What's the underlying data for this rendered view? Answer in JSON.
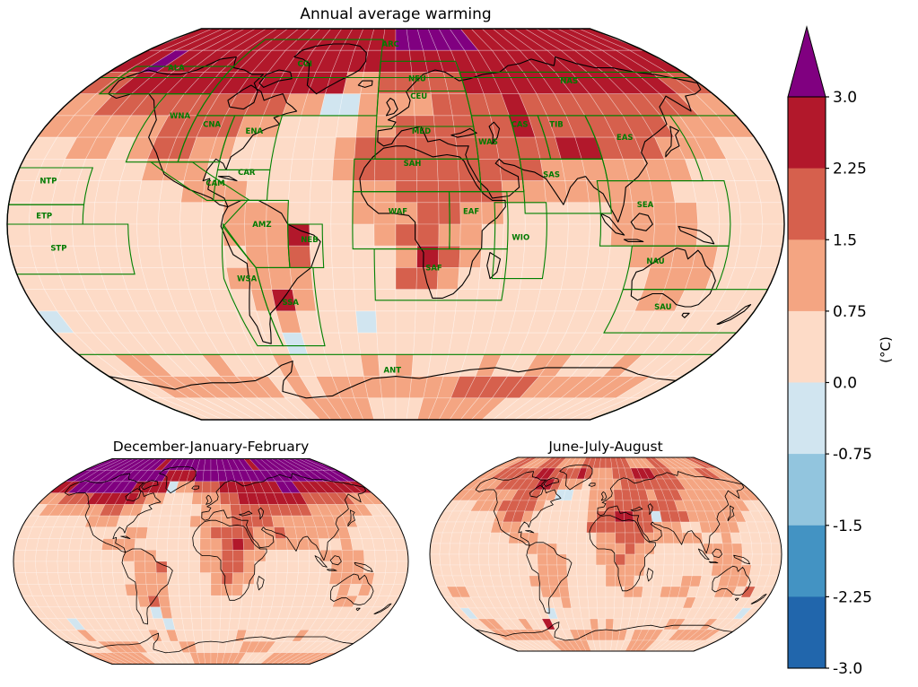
{
  "figure": {
    "annual_title": "Annual average warming",
    "djf_title": "December-January-February",
    "jja_title": "June-July-August"
  },
  "colorbar": {
    "unit_label": "(°C)",
    "tick_labels_top_to_bottom": [
      "3.0",
      "2.25",
      "1.5",
      "0.75",
      "0.0",
      "-0.75",
      "-1.5",
      "-2.25",
      "-3.0"
    ],
    "segment_colors_top_to_bottom": [
      "#b2182b",
      "#d6604d",
      "#f4a582",
      "#fddbc7",
      "#d1e5f0",
      "#92c5de",
      "#4393c3",
      "#2166ac"
    ],
    "over_arrow_color": "#800080",
    "outline_color": "#000000"
  },
  "chart_data": {
    "type": "heatmap",
    "projection": "robinson-like",
    "grid_resolution_deg": 10,
    "value_unit": "°C",
    "value_classes": {
      "9": {
        "range": "> 3.0",
        "color": "#800080"
      },
      "8": {
        "range": "2.25 to 3.0",
        "color": "#b2182b"
      },
      "7": {
        "range": "1.5 to 2.25",
        "color": "#d6604d"
      },
      "6": {
        "range": "0.75 to 1.5",
        "color": "#f4a582"
      },
      "5": {
        "range": "0.0 to 0.75",
        "color": "#fddbc7"
      },
      "4": {
        "range": "-0.75 to 0.0",
        "color": "#d1e5f0"
      },
      "3": {
        "range": "-1.5 to -0.75",
        "color": "#92c5de"
      },
      "2": {
        "range": "-2.25 to -1.5",
        "color": "#4393c3"
      },
      "1": {
        "range": "-3.0 to -2.25",
        "color": "#2166ac"
      }
    },
    "region_outline_color": "#008000",
    "region_label_color": "#007a00",
    "maps": [
      {
        "id": "annual",
        "title": "Annual average warming",
        "rows": [
          "888888888888888888999999888888888888",
          "889888888888888888888888888888888888",
          "778888888888888667777788888888888877",
          "667777777777664466667777877777777766",
          "666666777766555566777777877777776666",
          "556656776655555677777777778877766655",
          "555555666555555677777777766666665555",
          "555555556665555566777776666666655555",
          "555555555566655566677665555566665555",
          "555555555566685556776655555566665555",
          "555555555556675555687655555556666555",
          "555555555566665555776555555555666555",
          "555555555556865555555555555555665555",
          "455555555555655545555555555555555555",
          "555555555555455555555555555555555555",
          "556655565556555565655556556655565555",
          "556666666656566666666677777666666655",
          "555555555556666655556666665555555555"
        ]
      },
      {
        "id": "djf",
        "title": "December-January-February",
        "rows": [
          "999999999989999999999999899999999999",
          "999999999999888899999999999999999999",
          "889999999888846677788888889988888888",
          "667778888876655566677888888877777666",
          "566666677665555556667777777766666655",
          "555555666555555566667777666666665555",
          "555555555566555556777766766666655555",
          "555555556665555556678766666655655555",
          "555555555566655556677665555566665555",
          "555555555556675556677655555556665555",
          "555555555556665555676655555556666555",
          "555555555566665555666555555555656555",
          "555555555556765555555555555555665555",
          "555555555555465555555555555555555555",
          "555455555555545555555555555555555555",
          "555655555556565555555655555565555555",
          "555566666555556655555566665555555555",
          "666666665555555666666665555666666666"
        ]
      },
      {
        "id": "jja",
        "title": "June-July-August",
        "rows": [
          "667766677766667777777766667766666677",
          "667777778877778766677788877766667766",
          "666677777887666566667777777766666666",
          "666666677766445566677776777666666666",
          "555666777765555566777777776666666655",
          "555555677655555567788774777666666555",
          "555555666555555577777776665566665555",
          "555555556665555556677766666655655555",
          "555555555566655556667665555566665555",
          "555555555556665556676655555556665555",
          "555555555556665555666655555556666555",
          "555555555566665555666555556655666555",
          "566555555556665555556655666555665755",
          "555555555555565555555555555655555555",
          "545555555554555555555555555555555545",
          "556655565585555565655555556655565555",
          "556666666655566666666566665566666655",
          "555555555666666555555566665555555555"
        ]
      }
    ],
    "regions": [
      {
        "code": "ARC",
        "lon": [
          -180,
          180
        ],
        "lat": [
          67.5,
          90
        ],
        "label": [
          -4,
          83
        ]
      },
      {
        "code": "ALA",
        "lon": [
          -168,
          -105
        ],
        "lat": [
          60,
          72.6
        ],
        "label": [
          -141,
          72
        ]
      },
      {
        "code": "CGI",
        "lon": [
          -105,
          -10
        ],
        "lat": [
          50,
          85
        ],
        "label": [
          -60,
          74
        ]
      },
      {
        "code": "WNA",
        "lon": [
          -130,
          -105
        ],
        "lat": [
          28.6,
          60
        ],
        "label": [
          -114,
          50
        ]
      },
      {
        "code": "CNA",
        "lon": [
          -105,
          -85
        ],
        "lat": [
          28.6,
          50
        ],
        "label": [
          -95,
          46
        ]
      },
      {
        "code": "ENA",
        "lon": [
          -85,
          -60
        ],
        "lat": [
          25,
          50
        ],
        "label": [
          -72,
          43
        ]
      },
      {
        "code": "NTP",
        "lon": [
          -180,
          -145
        ],
        "lat": [
          9,
          26
        ],
        "label": [
          -164,
          20
        ]
      },
      {
        "code": "ETP",
        "lon": [
          -180,
          -145
        ],
        "lat": [
          0,
          9
        ],
        "label": [
          -163,
          4
        ]
      },
      {
        "code": "STP",
        "lon": [
          -180,
          -124
        ],
        "lat": [
          -23,
          0
        ],
        "label": [
          -157,
          -11
        ]
      },
      {
        "code": "CAM",
        "poly": [
          [
            -118,
            28.6
          ],
          [
            -98,
            28.6
          ],
          [
            -68,
            11
          ],
          [
            -88,
            11
          ]
        ],
        "label": [
          -85,
          19
        ]
      },
      {
        "code": "CAR",
        "lon": [
          -85,
          -60
        ],
        "lat": [
          11,
          25
        ],
        "label": [
          -71,
          24
        ]
      },
      {
        "code": "AMZ",
        "poly": [
          [
            -69,
            11
          ],
          [
            -50,
            11
          ],
          [
            -50,
            -20
          ],
          [
            -66,
            -20
          ],
          [
            -80,
            -1
          ]
        ],
        "label": [
          -62,
          0
        ]
      },
      {
        "code": "NEB",
        "lon": [
          -50,
          -34
        ],
        "lat": [
          -20,
          0
        ],
        "label": [
          -40,
          -7
        ]
      },
      {
        "code": "WSA",
        "poly": [
          [
            -80,
            0
          ],
          [
            -66,
            -20
          ],
          [
            -62,
            -56
          ],
          [
            -76,
            -56
          ],
          [
            -82,
            -25
          ]
        ],
        "label": [
          -71,
          -25
        ]
      },
      {
        "code": "SSA",
        "poly": [
          [
            -66,
            -20
          ],
          [
            -39,
            -20
          ],
          [
            -39,
            -56
          ],
          [
            -62,
            -56
          ]
        ],
        "label": [
          -52,
          -36
        ]
      },
      {
        "code": "NEU",
        "lon": [
          -10,
          40
        ],
        "lat": [
          61.3,
          75
        ],
        "label": [
          13,
          67
        ]
      },
      {
        "code": "CEU",
        "lon": [
          -10,
          40
        ],
        "lat": [
          45,
          61.3
        ],
        "label": [
          13,
          59
        ]
      },
      {
        "code": "MED",
        "lon": [
          -10,
          40
        ],
        "lat": [
          30,
          45
        ],
        "label": [
          13,
          43
        ]
      },
      {
        "code": "NAS",
        "lon": [
          40,
          180
        ],
        "lat": [
          50,
          70
        ],
        "label": [
          104,
          66
        ]
      },
      {
        "code": "WAS",
        "lon": [
          40,
          60
        ],
        "lat": [
          15,
          50
        ],
        "label": [
          46,
          38
        ]
      },
      {
        "code": "CAS",
        "lon": [
          60,
          75
        ],
        "lat": [
          30,
          50
        ],
        "label": [
          64,
          46
        ]
      },
      {
        "code": "TIB",
        "lon": [
          75,
          100
        ],
        "lat": [
          30,
          50
        ],
        "label": [
          83,
          46
        ]
      },
      {
        "code": "EAS",
        "lon": [
          100,
          145
        ],
        "lat": [
          20,
          50
        ],
        "label": [
          115,
          40
        ]
      },
      {
        "code": "SAS",
        "lon": [
          60,
          100
        ],
        "lat": [
          5,
          30
        ],
        "label": [
          74,
          23
        ]
      },
      {
        "code": "SEA",
        "lon": [
          95,
          155
        ],
        "lat": [
          -10,
          20
        ],
        "label": [
          116,
          9
        ]
      },
      {
        "code": "NAU",
        "lon": [
          110,
          155
        ],
        "lat": [
          -30,
          -10
        ],
        "label": [
          122,
          -17
        ]
      },
      {
        "code": "SAU",
        "lon": [
          110,
          180
        ],
        "lat": [
          -50,
          -30
        ],
        "label": [
          133,
          -38
        ]
      },
      {
        "code": "SAH",
        "lon": [
          -20,
          40
        ],
        "lat": [
          15,
          30
        ],
        "label": [
          8,
          28
        ]
      },
      {
        "code": "WAF",
        "lon": [
          -20,
          25
        ],
        "lat": [
          -11.4,
          15
        ],
        "label": [
          1,
          6
        ]
      },
      {
        "code": "EAF",
        "lon": [
          25,
          52
        ],
        "lat": [
          -11.4,
          15
        ],
        "label": [
          35,
          6
        ]
      },
      {
        "code": "SAF",
        "lon": [
          -10,
          52
        ],
        "lat": [
          -35,
          -11.4
        ],
        "label": [
          18,
          -20
        ]
      },
      {
        "code": "WIO",
        "lon": [
          46,
          70
        ],
        "lat": [
          -25,
          10
        ],
        "label": [
          58,
          -6
        ]
      },
      {
        "code": "ANT",
        "lon": [
          -180,
          180
        ],
        "lat": [
          -90,
          -60
        ],
        "label": [
          -2,
          -67
        ]
      }
    ]
  }
}
